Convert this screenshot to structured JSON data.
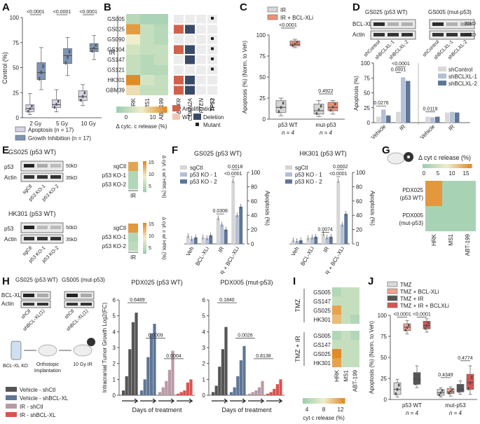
{
  "colors": {
    "apoptosis": "#d9d3e6",
    "growth_inhibition": "#7f95b6",
    "ir": "#d6d6d6",
    "ir_bclxli": "#ef8e76",
    "shcontrol": "#d9d9d9",
    "shbclxl1": "#b3c0d6",
    "shbclxl2": "#5f7696",
    "sgctl": "#d6d6d6",
    "ko1": "#b3c0d6",
    "ko2": "#5f7696",
    "heat_low": "#9ccfb1",
    "heat_mid": "#eeeecb",
    "heat_high": "#e08b26",
    "amplification": "#d0624c",
    "deletion": "#3b4a66",
    "wt": "#f1c7b3",
    "tmz": "#d9d9d9",
    "tmz_bclxli": "#f2a38f",
    "tmz_ir": "#555555",
    "tmz_ir_bclxli": "#d9534f"
  },
  "panels": {
    "A": "A",
    "B": "B",
    "C": "C",
    "D": "D",
    "E": "E",
    "F": "F",
    "G": "G",
    "H": "H",
    "I": "I",
    "J": "J"
  },
  "panel_a": {
    "chart_data": {
      "type": "box",
      "title": "",
      "ylabel": "Control (%)",
      "ylim": [
        0,
        100
      ],
      "categories": [
        "2 Gy",
        "5 Gy",
        "10 Gy"
      ],
      "series": [
        {
          "name": "Apoptosis",
          "n_label": "Apoptosis (n = 17)",
          "box": [
            [
              3,
              6,
              9,
              13,
              24
            ],
            [
              6,
              10,
              13,
              18,
              28
            ],
            [
              12,
              17,
              21,
              27,
              33
            ]
          ]
        },
        {
          "name": "Growth Inhibition",
          "n_label": "Growth Inhibition (n = 17)",
          "box": [
            [
              28,
              38,
              45,
              55,
              70
            ],
            [
              42,
              54,
              62,
              69,
              80
            ],
            [
              58,
              66,
              69,
              74,
              82
            ]
          ]
        }
      ],
      "pvalues": [
        "<0.0001",
        "<0.0001",
        "<0.0001"
      ],
      "yticks": [
        "0",
        "25",
        "50",
        "75",
        "100"
      ]
    }
  },
  "panel_b": {
    "chart_data": {
      "type": "heatmap",
      "row_group": "IR",
      "rows": [
        "GS005",
        "GS025",
        "GS090",
        "GS104",
        "GS147",
        "GS121",
        "HK301",
        "GBM39"
      ],
      "columns": [
        "HRK",
        "MS1",
        "ABT-199"
      ],
      "values": [
        [
          2,
          1,
          1
        ],
        [
          11,
          3,
          2
        ],
        [
          6,
          3,
          2
        ],
        [
          4,
          3,
          3
        ],
        [
          3,
          2,
          3
        ],
        [
          3,
          2,
          2
        ],
        [
          12,
          4,
          3
        ],
        [
          7,
          3,
          3
        ]
      ],
      "genomic_columns": [
        "EGFR",
        "CDKN2A",
        "PTEN",
        "TP53"
      ],
      "genomic": [
        [
          "w",
          "w",
          "w",
          "m"
        ],
        [
          "a",
          "d",
          "w",
          "w"
        ],
        [
          "w",
          "w",
          "w",
          "m"
        ],
        [
          "a",
          "d",
          "w",
          "m"
        ],
        [
          "w",
          "d",
          "w",
          "m"
        ],
        [
          "w",
          "w",
          "w",
          "m"
        ],
        [
          "a",
          "d",
          "w",
          "w"
        ],
        [
          "a",
          "d",
          "w",
          "w"
        ]
      ],
      "colorbar_label": "Δ cytc. c release (%)",
      "colorbar_ticks": [
        "0",
        "10"
      ],
      "legend": {
        "amplification": "Amplification",
        "wt": "WT",
        "deletion": "Deletion",
        "mutant": "Mutant"
      }
    }
  },
  "panel_c": {
    "chart_data": {
      "type": "box",
      "ylabel": "Apoptosis (%) (Norm. to Veh)",
      "ylim": [
        0,
        100
      ],
      "yticks": [
        "0",
        "25",
        "50",
        "75",
        "100"
      ],
      "legend": [
        "IR",
        "IR + BCL-XLi"
      ],
      "categories": [
        "p53 WT",
        "mut-p53"
      ],
      "n_labels": [
        "n = 4",
        "n = 4"
      ],
      "series": [
        {
          "name": "IR",
          "box": [
            [
              4,
              8,
              14,
              22,
              25
            ],
            [
              3,
              6,
              10,
              18,
              22
            ]
          ]
        },
        {
          "name": "IR + BCL-XLi",
          "box": [
            [
              85,
              87,
              89,
              93,
              95
            ],
            [
              6,
              10,
              14,
              20,
              22
            ]
          ]
        }
      ],
      "pvalues": [
        "<0.0001",
        "0.4922"
      ]
    }
  },
  "panel_d": {
    "blot_titles": [
      "GS025 (p53 WT)",
      "GS005 (mut-p53)"
    ],
    "blot_rows": [
      "BCL-XL",
      "Actin"
    ],
    "kd_markers": [
      "30kD",
      "35kD"
    ],
    "lanes": [
      "shControl",
      "shBCLXL-1",
      "shBCLXL-2"
    ],
    "chart_data": {
      "type": "bar",
      "ylabel": "Apoptosis (%)",
      "ylim": [
        0,
        100
      ],
      "yticks": [
        "0",
        "25",
        "50",
        "75",
        "100"
      ],
      "legend": [
        "shControl",
        "shBCLXL-1",
        "shBCLXL-2"
      ],
      "groups": [
        "Vehicle",
        "IR",
        "Vehicle",
        "IR"
      ],
      "values": [
        [
          10,
          22,
          12
        ],
        [
          18,
          76,
          70
        ],
        [
          10,
          9,
          10
        ],
        [
          17,
          18,
          17
        ]
      ],
      "pvalues": [
        "0.0276",
        "0.0001",
        "<0.0001",
        "0.0119"
      ]
    }
  },
  "panel_e": {
    "blots": [
      {
        "title": "GS025 (p53 WT)",
        "rows": [
          "p53",
          "Actin"
        ],
        "markers": [
          "50kD",
          "35kD"
        ]
      },
      {
        "title": "HK301 (p53 WT)",
        "rows": [
          "p53",
          "Actin"
        ],
        "markers": [
          "50kD",
          "35kD"
        ]
      }
    ],
    "lanes": [
      "sgCtl",
      "p53 KO-1",
      "p53 KO-2"
    ],
    "heat_label": "IR",
    "heat_ticks": [
      "15",
      "10",
      "5"
    ],
    "colorbar_label": "Δ cyt. c w/ HRK (%)",
    "heat_values": [
      [
        13,
        2,
        2
      ],
      [
        14,
        2,
        3
      ]
    ]
  },
  "panel_f": {
    "chart_data": [
      {
        "type": "bar",
        "title": "GS025 (p53 WT)",
        "ylabel": "Apoptosis (%)",
        "ylim": [
          0,
          100
        ],
        "yticks": [
          "0",
          "20",
          "40",
          "60",
          "80",
          "100"
        ],
        "legend": [
          "sgCtl",
          "p53 KO - 1",
          "p53 KO - 2"
        ],
        "categories": [
          "Veh",
          "BCL-XLi",
          "IR",
          "IR + BCL-XLi"
        ],
        "values": [
          [
            11,
            7,
            9
          ],
          [
            9,
            8,
            12
          ],
          [
            36,
            27,
            20
          ],
          [
            88,
            40,
            52
          ]
        ],
        "pvalues": [
          "0.0308",
          "<0.0001",
          "0.0018"
        ]
      },
      {
        "type": "bar",
        "title": "HK301 (p53 WT)",
        "ylabel": "Apoptosis (%)",
        "ylim": [
          0,
          100
        ],
        "yticks": [
          "0",
          "20",
          "40",
          "60",
          "80",
          "100"
        ],
        "legend": [
          "sgCtl",
          "p53 KO - 1",
          "p53 KO - 2"
        ],
        "categories": [
          "Veh",
          "BCL-XLi",
          "IR",
          "IR + BCL-XLi"
        ],
        "values": [
          [
            5,
            4,
            5
          ],
          [
            8,
            9,
            10
          ],
          [
            14,
            9,
            10
          ],
          [
            88,
            27,
            42
          ]
        ],
        "pvalues": [
          "0.0074",
          "<0.0001",
          "0.0002"
        ]
      }
    ]
  },
  "panel_g": {
    "chart_data": {
      "type": "heatmap",
      "title": "Δ cyt c release (%)",
      "colorbar_ticks": [
        "0",
        "5",
        "10",
        "15"
      ],
      "rows": [
        "PDX025 (p53 WT)",
        "PDX005 (mut-p53)"
      ],
      "columns": [
        "HRK",
        "MS1",
        "ABT-199"
      ],
      "values": [
        [
          14,
          1,
          1
        ],
        [
          1,
          1,
          1
        ]
      ]
    }
  },
  "panel_h": {
    "blot_titles": [
      "GS025 (p53 WT)",
      "GS005 (mut-p53)"
    ],
    "blot_rows": [
      "BCL-XL",
      "Actin"
    ],
    "lanes": [
      "shCtl",
      "shBCL-XL(1)"
    ],
    "workflow": [
      "BCL-XL KD",
      "Orthotopic Implantation",
      "10 Gy IR"
    ],
    "legend": [
      "Vehicle - shCtl",
      "Vehicle - shBCL-XL",
      "IR - shCtl",
      "IR - shBCL-XL"
    ],
    "chart_data": [
      {
        "type": "bar",
        "title": "PDX025 (p53 WT)",
        "ylabel": "Intracranial Tumor Growth Log2(FC)",
        "xlabel": "Days of treatment",
        "ylim": [
          0,
          6
        ],
        "yticks": [
          "0",
          "1",
          "2",
          "3",
          "4",
          "5",
          "6"
        ],
        "groups": [
          "Vehicle - shCtl",
          "Vehicle - shBCL-XL",
          "IR - shCtl",
          "IR - shBCL-XL"
        ],
        "values": [
          [
            0.3,
            1.2,
            2.9,
            4.6,
            5.2
          ],
          [
            0.3,
            1.0,
            2.4,
            3.9,
            4.5
          ],
          [
            0.2,
            0.5,
            0.9,
            1.6,
            2.8
          ],
          [
            0.1,
            0.2,
            0.3,
            0.8,
            1.0
          ]
        ],
        "pvalues": [
          "0.6489",
          "0.0009",
          "0.0004"
        ]
      },
      {
        "type": "bar",
        "title": "PDX005 (mut-p53)",
        "ylabel": "",
        "xlabel": "Days of treatment",
        "ylim": [
          0,
          6
        ],
        "yticks": [
          "0",
          "1",
          "2",
          "3",
          "4",
          "5",
          "6"
        ],
        "groups": [
          "Vehicle - shCtl",
          "Vehicle - shBCL-XL",
          "IR - shCtl",
          "IR - shBCL-XL"
        ],
        "values": [
          [
            0.2,
            0.6,
            1.8,
            2.9,
            4.3
          ],
          [
            0.2,
            0.5,
            1.2,
            2.2,
            3.1
          ],
          [
            0.1,
            0.2,
            0.3,
            0.5,
            0.9
          ],
          [
            0.1,
            0.2,
            0.4,
            0.7,
            1.0
          ]
        ],
        "pvalues": [
          "0.1840",
          "0.0026",
          "0.8138"
        ]
      }
    ]
  },
  "panel_i": {
    "chart_data": {
      "type": "heatmap",
      "groups": [
        "TMZ",
        "TMZ + IR"
      ],
      "rows": [
        "GS005",
        "GS147",
        "GS025",
        "HK301"
      ],
      "columns": [
        "HRK",
        "MS1",
        "ABT-199"
      ],
      "values": [
        [
          [
            5,
            6,
            6
          ],
          [
            6,
            6,
            6
          ],
          [
            11,
            6,
            6
          ],
          [
            10,
            6,
            5
          ]
        ],
        [
          [
            5,
            6,
            5
          ],
          [
            6,
            6,
            6
          ],
          [
            12,
            6,
            6
          ],
          [
            11,
            6,
            6
          ]
        ]
      ],
      "colorbar_ticks": [
        "4",
        "8",
        "12"
      ],
      "colorbar_label": "cyt c release (%)"
    }
  },
  "panel_j": {
    "chart_data": {
      "type": "box",
      "ylabel": "Apoptosis (%) (Norm. to Veh)",
      "ylim": [
        0,
        100
      ],
      "yticks": [
        "0",
        "25",
        "50",
        "75",
        "100"
      ],
      "legend": [
        "TMZ",
        "TMZ + BCL-XLi",
        "TMZ + IR",
        "TMZ + IR + BCLXLi"
      ],
      "categories": [
        "p53 WT",
        "mut-p53"
      ],
      "n_labels": [
        "n = 4",
        "n = 4"
      ],
      "series": [
        {
          "name": "TMZ",
          "box": [
            [
              3,
              6,
              12,
              20,
              24
            ],
            [
              3,
              5,
              8,
              12,
              14
            ]
          ]
        },
        {
          "name": "TMZ + BCL-XLi",
          "box": [
            [
              78,
              82,
              86,
              90,
              94
            ],
            [
              4,
              7,
              9,
              13,
              15
            ]
          ]
        },
        {
          "name": "TMZ + IR",
          "box": [
            [
              14,
              18,
              24,
              32,
              40
            ],
            [
              6,
              9,
              12,
              18,
              22
            ]
          ]
        },
        {
          "name": "TMZ + IR + BCLXLi",
          "box": [
            [
              80,
              84,
              88,
              93,
              96
            ],
            [
              6,
              12,
              20,
              30,
              40
            ]
          ]
        }
      ],
      "pvalues": [
        "<0.0001",
        "<0.0001",
        "0.4349",
        "0.4774"
      ]
    }
  }
}
